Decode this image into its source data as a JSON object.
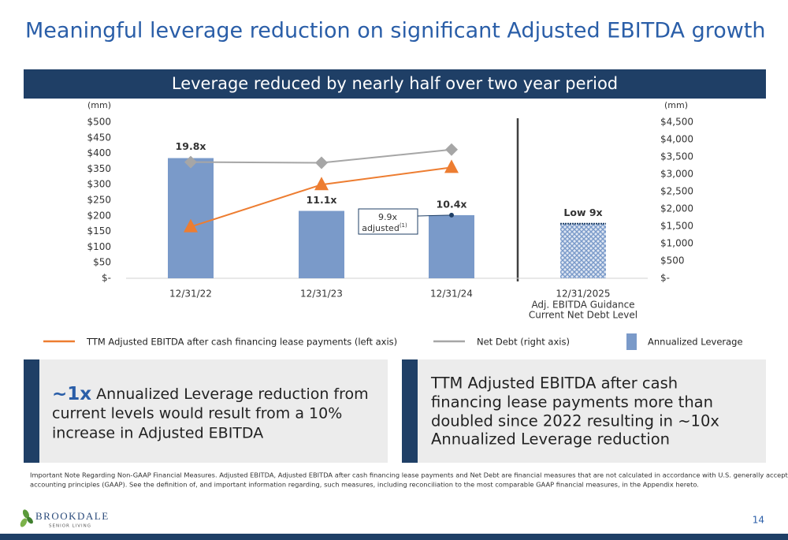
{
  "header": {
    "title": "Meaningful leverage reduction on significant Adjusted EBITDA growth",
    "banner": "Leverage reduced by nearly half over two year period"
  },
  "chart_data": {
    "type": "bar-line",
    "left_unit": "(mm)",
    "right_unit": "(mm)",
    "categories": [
      "12/31/22",
      "12/31/23",
      "12/31/24",
      "12/31/2025"
    ],
    "category_notes": [
      "Adj. EBITDA Guidance",
      "Current Net Debt Level"
    ],
    "ylim": [
      0,
      500
    ],
    "yticks": [
      {
        "value": 0,
        "label": "$-"
      },
      {
        "value": 50,
        "label": "$50"
      },
      {
        "value": 100,
        "label": "$100"
      },
      {
        "value": 150,
        "label": "$150"
      },
      {
        "value": 200,
        "label": "$200"
      },
      {
        "value": 250,
        "label": "$250"
      },
      {
        "value": 300,
        "label": "$300"
      },
      {
        "value": 350,
        "label": "$350"
      },
      {
        "value": 400,
        "label": "$400"
      },
      {
        "value": 450,
        "label": "$450"
      },
      {
        "value": 500,
        "label": "$500"
      }
    ],
    "y2lim": [
      0,
      4500
    ],
    "y2ticks": [
      {
        "value": 0,
        "label": "$-"
      },
      {
        "value": 500,
        "label": "$500"
      },
      {
        "value": 1000,
        "label": "$1,000"
      },
      {
        "value": 1500,
        "label": "$1,500"
      },
      {
        "value": 2000,
        "label": "$2,000"
      },
      {
        "value": 2500,
        "label": "$2,500"
      },
      {
        "value": 3000,
        "label": "$3,000"
      },
      {
        "value": 3500,
        "label": "$3,500"
      },
      {
        "value": 4000,
        "label": "$4,000"
      },
      {
        "value": 4500,
        "label": "$4,500"
      }
    ],
    "bars": {
      "name": "Annualized Leverage",
      "color": "#7a9ac9",
      "values": [
        19.8,
        11.1,
        10.4,
        9
      ],
      "value_labels": [
        "19.8x",
        "11.1x",
        "10.4x",
        "Low 9x"
      ],
      "styles": [
        "solid",
        "solid",
        "solid",
        "hatched"
      ]
    },
    "series": [
      {
        "name": "TTM Adjusted EBITDA after cash financing lease payments (left axis)",
        "color": "#ed7d31",
        "marker": "triangle",
        "values": [
          165,
          300,
          355,
          null
        ]
      },
      {
        "name": "Net Debt (right axis)",
        "color": "#a6a6a6",
        "marker": "diamond",
        "axis": "y2",
        "values": [
          3350,
          3330,
          3710,
          null
        ]
      }
    ],
    "annotation": {
      "text": "9.9x",
      "sub": "adjusted",
      "sup": "(1)"
    }
  },
  "boxes": [
    {
      "highlight": "~1x",
      "lines": [
        " Annualized Leverage reduction from",
        "current levels would result from a 10%",
        "increase in Adjusted EBITDA"
      ]
    },
    {
      "lines": [
        "TTM Adjusted EBITDA after cash",
        "financing lease payments more than",
        "doubled since 2022 resulting in ~10x",
        "Annualized Leverage reduction"
      ]
    }
  ],
  "footnote": [
    "Important Note Regarding Non-GAAP Financial Measures. Adjusted EBITDA, Adjusted EBITDA after cash financing lease payments and Net Debt are financial measures that are not calculated in accordance with U.S. generally accepted",
    "accounting principles (GAAP). See the definition of, and important information regarding, such measures, including reconciliation to the most comparable GAAP financial measures, in the Appendix hereto."
  ],
  "logo": {
    "name": "BROOKDALE",
    "tagline": "SENIOR LIVING"
  },
  "page_number": "14"
}
